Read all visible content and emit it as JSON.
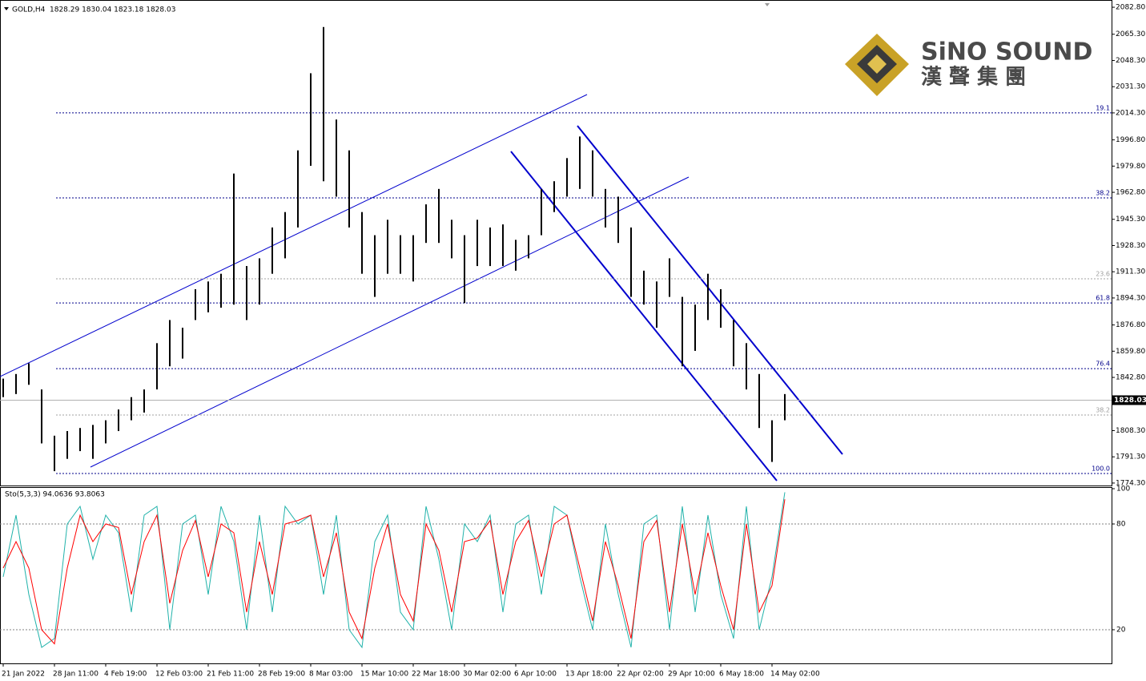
{
  "chart_data": [
    {
      "type": "range-bar",
      "title": "GOLD,H4",
      "ohlc_text": "1828.29 1830.04 1823.18 1828.03",
      "categories": [
        "21 Jan 2022",
        null,
        null,
        null,
        "28 Jan 11:00",
        null,
        null,
        null,
        "4 Feb 19:00",
        null,
        null,
        null,
        "12 Feb 03:00",
        null,
        null,
        null,
        "21 Feb 11:00",
        null,
        null,
        null,
        "28 Feb 19:00",
        null,
        null,
        null,
        "8 Mar 03:00",
        null,
        null,
        null,
        "15 Mar 10:00",
        null,
        null,
        null,
        "22 Mar 18:00",
        null,
        null,
        null,
        "30 Mar 02:00",
        null,
        null,
        null,
        "6 Apr 10:00",
        null,
        null,
        null,
        "13 Apr 18:00",
        null,
        null,
        null,
        "22 Apr 02:00",
        null,
        null,
        null,
        "29 Apr 10:00",
        null,
        null,
        null,
        "6 May 18:00",
        null,
        null,
        null,
        "14 May 02:00",
        null
      ],
      "low": [
        1830,
        1832,
        1838,
        1800,
        1782,
        1790,
        1795,
        1790,
        1800,
        1808,
        1815,
        1820,
        1835,
        1850,
        1855,
        1880,
        1885,
        1888,
        1890,
        1880,
        1890,
        1910,
        1920,
        1940,
        1980,
        1970,
        1960,
        1940,
        1910,
        1895,
        1910,
        1910,
        1905,
        1930,
        1930,
        1920,
        1891,
        1915,
        1915,
        1915,
        1912,
        1920,
        1935,
        1950,
        1960,
        1965,
        1960,
        1940,
        1930,
        1895,
        1890,
        1875,
        1895,
        1850,
        1860,
        1880,
        1875,
        1850,
        1835,
        1810,
        1788,
        1815
      ],
      "high": [
        1842,
        1845,
        1852,
        1835,
        1805,
        1808,
        1810,
        1812,
        1815,
        1822,
        1830,
        1835,
        1865,
        1880,
        1875,
        1900,
        1905,
        1910,
        1975,
        1915,
        1920,
        1940,
        1950,
        1990,
        2040,
        2070,
        2010,
        1990,
        1950,
        1935,
        1945,
        1935,
        1935,
        1955,
        1965,
        1945,
        1935,
        1945,
        1940,
        1942,
        1932,
        1935,
        1965,
        1970,
        1985,
        1999,
        1990,
        1965,
        1960,
        1940,
        1912,
        1905,
        1920,
        1895,
        1890,
        1910,
        1900,
        1880,
        1865,
        1845,
        1815,
        1832
      ],
      "color": "#000000",
      "ylim": [
        1772.7,
        2087.5
      ],
      "yticks": [
        {
          "value": 2082.8,
          "label": "2082.80"
        },
        {
          "value": 2065.3,
          "label": "2065.30"
        },
        {
          "value": 2048.3,
          "label": "2048.30"
        },
        {
          "value": 2031.3,
          "label": "2031.30"
        },
        {
          "value": 2014.3,
          "label": "2014.30"
        },
        {
          "value": 1996.8,
          "label": "1996.80"
        },
        {
          "value": 1979.8,
          "label": "1979.80"
        },
        {
          "value": 1962.8,
          "label": "1962.80"
        },
        {
          "value": 1945.3,
          "label": "1945.30"
        },
        {
          "value": 1928.3,
          "label": "1928.30"
        },
        {
          "value": 1911.3,
          "label": "1911.30"
        },
        {
          "value": 1894.3,
          "label": "1894.30"
        },
        {
          "value": 1876.8,
          "label": "1876.80"
        },
        {
          "value": 1859.8,
          "label": "1859.80"
        },
        {
          "value": 1842.8,
          "label": "1842.80"
        },
        {
          "value": 1808.3,
          "label": "1808.30"
        },
        {
          "value": 1791.3,
          "label": "1791.30"
        },
        {
          "value": 1774.3,
          "label": "1774.30"
        }
      ],
      "last_price": 1828.03,
      "levels": [
        {
          "value": 2014.3,
          "label": "19.1",
          "color": "#00008b"
        },
        {
          "value": 1959.2,
          "label": "38.2",
          "color": "#00008b"
        },
        {
          "value": 1906.7,
          "label": "23.6",
          "color": "#a0a0a0"
        },
        {
          "value": 1891.1,
          "label": "61.8",
          "color": "#00008b"
        },
        {
          "value": 1848.5,
          "label": "76.4",
          "color": "#00008b"
        },
        {
          "value": 1818.4,
          "label": "38.2",
          "color": "#a0a0a0"
        },
        {
          "value": 1780.5,
          "label": "100.0",
          "color": "#00008b"
        }
      ]
    },
    {
      "type": "line",
      "title": "Sto(5,3,3) 94.0636 93.8063",
      "series": [
        {
          "color": "#20b2aa",
          "values": [
            50,
            85,
            40,
            10,
            15,
            80,
            90,
            60,
            85,
            75,
            30,
            85,
            90,
            20,
            80,
            85,
            40,
            90,
            70,
            20,
            85,
            30,
            90,
            80,
            85,
            40,
            85,
            20,
            10,
            70,
            85,
            30,
            20,
            90,
            60,
            20,
            80,
            70,
            85,
            30,
            80,
            85,
            40,
            90,
            85,
            50,
            20,
            80,
            40,
            10,
            80,
            85,
            20,
            90,
            30,
            85,
            40,
            15,
            90,
            20,
            50,
            98
          ]
        },
        {
          "color": "#ff0000",
          "values": [
            55,
            70,
            55,
            20,
            12,
            55,
            85,
            70,
            80,
            78,
            40,
            70,
            85,
            35,
            65,
            82,
            50,
            80,
            75,
            30,
            70,
            40,
            80,
            82,
            85,
            50,
            75,
            30,
            15,
            55,
            80,
            40,
            25,
            80,
            65,
            30,
            70,
            72,
            82,
            40,
            70,
            82,
            50,
            80,
            85,
            55,
            25,
            70,
            45,
            15,
            70,
            82,
            30,
            80,
            40,
            75,
            45,
            20,
            80,
            30,
            45,
            94
          ]
        }
      ],
      "ylim": [
        0,
        100
      ],
      "yticks": [
        20,
        80,
        100
      ],
      "levels": [
        20,
        80
      ]
    }
  ],
  "logo": {
    "name": "SiNO SOUND",
    "chinese": "漢 聲 集 團"
  }
}
